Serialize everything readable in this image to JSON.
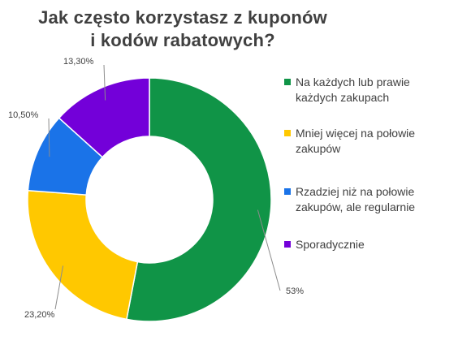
{
  "chart_data": {
    "type": "pie",
    "variant": "donut",
    "title": "Jak często korzystasz z kuponów i kodów rabatowych?",
    "title_lines": [
      "Jak często korzystasz z kuponów",
      "i kodów rabatowych?"
    ],
    "categories": [
      "Na każdych lub prawie każdych zakupach",
      "Mniej więcej na połowie zakupów",
      "Rzadziej niż na połowie zakupów, ale regularnie",
      "Sporadycznie"
    ],
    "values": [
      53,
      23.2,
      10.5,
      13.3
    ],
    "value_labels": [
      "53%",
      "23,20%",
      "10,50%",
      "13,30%"
    ],
    "colors": [
      "#109447",
      "#ffc800",
      "#1a73e8",
      "#7300d9"
    ],
    "legend_position": "right"
  }
}
